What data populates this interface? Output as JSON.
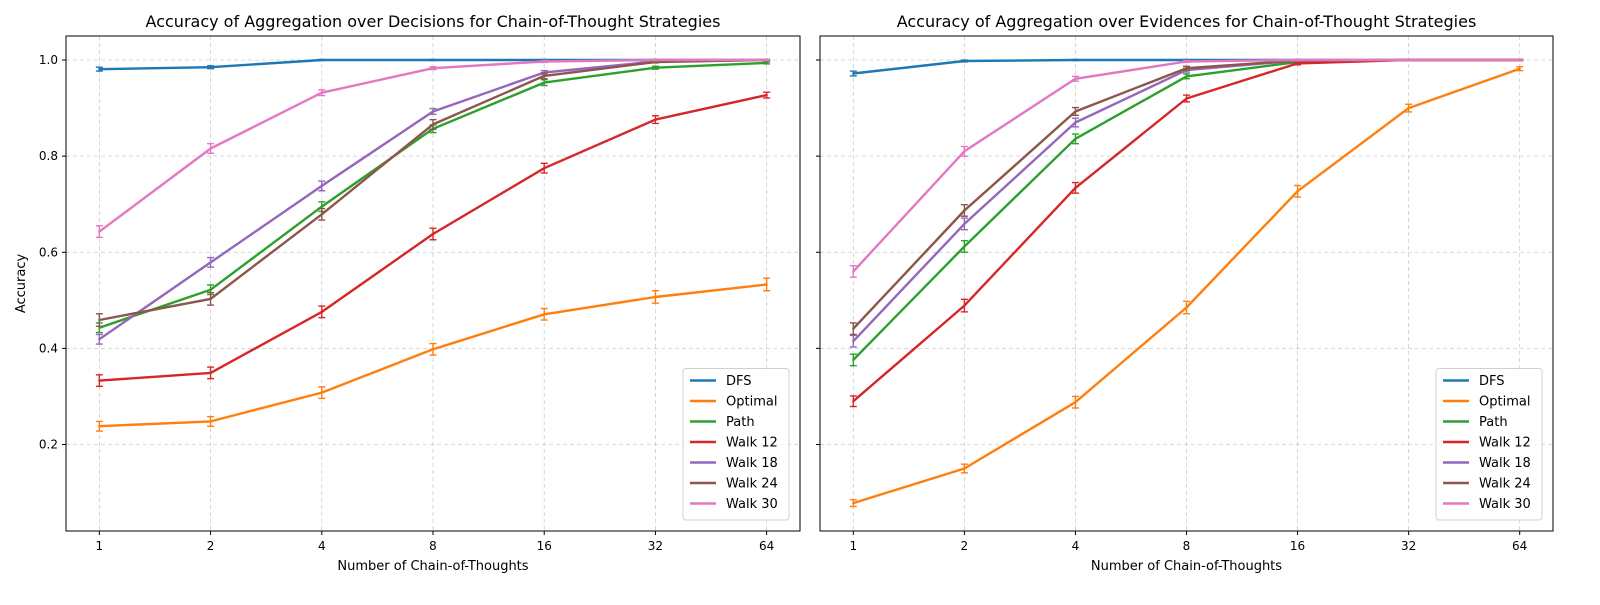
{
  "chart_data": [
    {
      "type": "line",
      "title": "Accuracy of Aggregation over Decisions for Chain-of-Thought Strategies",
      "xlabel": "Number of Chain-of-Thoughts",
      "ylabel": "Accuracy",
      "x": [
        1,
        2,
        4,
        8,
        16,
        32,
        64
      ],
      "x_tick_labels": [
        "1",
        "2",
        "4",
        "8",
        "16",
        "32",
        "64"
      ],
      "x_scale": "log2",
      "y_ticks": [
        0.2,
        0.4,
        0.6,
        0.8,
        1.0
      ],
      "y_tick_labels": [
        "0.2",
        "0.4",
        "0.6",
        "0.8",
        "1.0"
      ],
      "ylim": [
        0.02,
        1.05
      ],
      "grid": true,
      "legend_position": "lower right",
      "series": [
        {
          "name": "DFS",
          "color": "#1f77b4",
          "values": [
            0.981,
            0.985,
            1.0,
            1.0,
            1.0,
            1.0,
            1.0
          ],
          "errors": [
            0.004,
            0.003,
            0.001,
            0.001,
            0.001,
            0.001,
            0.001
          ]
        },
        {
          "name": "Optimal",
          "color": "#ff7f0e",
          "values": [
            0.238,
            0.248,
            0.308,
            0.398,
            0.471,
            0.507,
            0.533
          ],
          "errors": [
            0.01,
            0.01,
            0.012,
            0.012,
            0.012,
            0.013,
            0.013
          ]
        },
        {
          "name": "Path",
          "color": "#2ca02c",
          "values": [
            0.443,
            0.522,
            0.695,
            0.857,
            0.953,
            0.984,
            0.994
          ],
          "errors": [
            0.01,
            0.01,
            0.01,
            0.008,
            0.006,
            0.003,
            0.002
          ]
        },
        {
          "name": "Walk 12",
          "color": "#d62728",
          "values": [
            0.333,
            0.349,
            0.476,
            0.638,
            0.775,
            0.876,
            0.927
          ],
          "errors": [
            0.012,
            0.012,
            0.012,
            0.012,
            0.01,
            0.008,
            0.006
          ]
        },
        {
          "name": "Walk 18",
          "color": "#9467bd",
          "values": [
            0.419,
            0.579,
            0.738,
            0.893,
            0.974,
            0.997,
            1.0
          ],
          "errors": [
            0.01,
            0.01,
            0.01,
            0.006,
            0.004,
            0.002,
            0.001
          ]
        },
        {
          "name": "Walk 24",
          "color": "#8c564b",
          "values": [
            0.459,
            0.503,
            0.679,
            0.866,
            0.967,
            0.996,
            1.0
          ],
          "errors": [
            0.013,
            0.013,
            0.012,
            0.01,
            0.006,
            0.002,
            0.001
          ]
        },
        {
          "name": "Walk 30",
          "color": "#e377c2",
          "values": [
            0.643,
            0.816,
            0.932,
            0.983,
            0.997,
            1.0,
            1.0
          ],
          "errors": [
            0.012,
            0.01,
            0.006,
            0.003,
            0.002,
            0.001,
            0.001
          ]
        }
      ]
    },
    {
      "type": "line",
      "title": "Accuracy of Aggregation over Evidences for Chain-of-Thought Strategies",
      "xlabel": "Number of Chain-of-Thoughts",
      "ylabel": "",
      "x": [
        1,
        2,
        4,
        8,
        16,
        32,
        64
      ],
      "x_tick_labels": [
        "1",
        "2",
        "4",
        "8",
        "16",
        "32",
        "64"
      ],
      "x_scale": "log2",
      "y_ticks": [
        0.2,
        0.4,
        0.6,
        0.8,
        1.0
      ],
      "y_tick_labels": [],
      "ylim": [
        0.02,
        1.05
      ],
      "grid": true,
      "legend_position": "lower right",
      "series": [
        {
          "name": "DFS",
          "color": "#1f77b4",
          "values": [
            0.972,
            0.998,
            1.0,
            1.0,
            1.0,
            1.0,
            1.0
          ],
          "errors": [
            0.005,
            0.002,
            0.001,
            0.001,
            0.001,
            0.001,
            0.001
          ]
        },
        {
          "name": "Optimal",
          "color": "#ff7f0e",
          "values": [
            0.078,
            0.15,
            0.288,
            0.485,
            0.727,
            0.9,
            0.982
          ],
          "errors": [
            0.007,
            0.009,
            0.012,
            0.013,
            0.012,
            0.008,
            0.004
          ]
        },
        {
          "name": "Path",
          "color": "#2ca02c",
          "values": [
            0.376,
            0.612,
            0.836,
            0.966,
            0.996,
            1.0,
            1.0
          ],
          "errors": [
            0.012,
            0.012,
            0.01,
            0.005,
            0.002,
            0.001,
            0.001
          ]
        },
        {
          "name": "Walk 12",
          "color": "#d62728",
          "values": [
            0.29,
            0.489,
            0.734,
            0.92,
            0.993,
            1.0,
            1.0
          ],
          "errors": [
            0.011,
            0.013,
            0.011,
            0.007,
            0.003,
            0.001,
            0.001
          ]
        },
        {
          "name": "Walk 18",
          "color": "#9467bd",
          "values": [
            0.415,
            0.659,
            0.87,
            0.979,
            0.999,
            1.0,
            1.0
          ],
          "errors": [
            0.012,
            0.012,
            0.009,
            0.004,
            0.001,
            0.001,
            0.001
          ]
        },
        {
          "name": "Walk 24",
          "color": "#8c564b",
          "values": [
            0.441,
            0.687,
            0.893,
            0.983,
            0.999,
            1.0,
            1.0
          ],
          "errors": [
            0.012,
            0.012,
            0.008,
            0.004,
            0.001,
            0.001,
            0.001
          ]
        },
        {
          "name": "Walk 30",
          "color": "#e377c2",
          "values": [
            0.56,
            0.81,
            0.961,
            0.997,
            1.0,
            1.0,
            1.0
          ],
          "errors": [
            0.012,
            0.01,
            0.005,
            0.002,
            0.001,
            0.001,
            0.001
          ]
        }
      ]
    }
  ]
}
